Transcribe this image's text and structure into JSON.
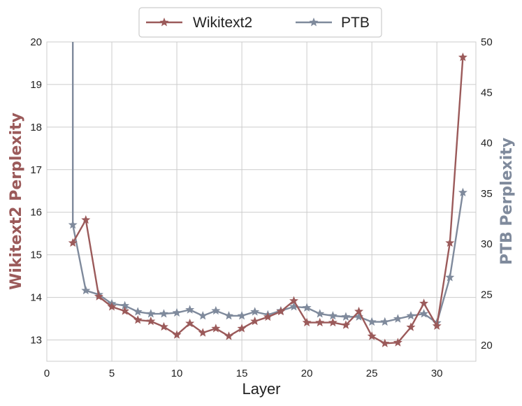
{
  "chart_data": {
    "type": "line",
    "xlabel": "Layer",
    "ylabel_left": "Wikitext2 Perplexity",
    "ylabel_right": "PTB Perplexity",
    "xlim": [
      0,
      33
    ],
    "ylim_left": [
      12.5,
      20
    ],
    "ylim_right": [
      18.4,
      50
    ],
    "x_ticks": [
      0,
      5,
      10,
      15,
      20,
      25,
      30
    ],
    "y_ticks_left": [
      13,
      14,
      15,
      16,
      17,
      18,
      19,
      20
    ],
    "y_ticks_right": [
      20,
      25,
      30,
      35,
      40,
      45,
      50
    ],
    "grid": true,
    "legend_position": "top-center",
    "colors": {
      "wikitext2": "#9b5a5a",
      "ptb": "#7f8a9c"
    },
    "series": [
      {
        "name": "Wikitext2",
        "axis": "left",
        "x": [
          2,
          3,
          4,
          5,
          6,
          7,
          8,
          9,
          10,
          11,
          12,
          13,
          14,
          15,
          16,
          17,
          18,
          19,
          20,
          21,
          22,
          23,
          24,
          25,
          26,
          27,
          28,
          29,
          30,
          31,
          32
        ],
        "values": [
          15.28,
          15.82,
          14.02,
          13.78,
          13.68,
          13.47,
          13.44,
          13.31,
          13.12,
          13.39,
          13.17,
          13.27,
          13.09,
          13.27,
          13.44,
          13.54,
          13.67,
          13.92,
          13.41,
          13.41,
          13.41,
          13.35,
          13.67,
          13.09,
          12.92,
          12.94,
          13.3,
          13.86,
          13.33,
          15.28,
          19.64
        ]
      },
      {
        "name": "PTB",
        "axis": "right",
        "x": [
          2,
          3,
          4,
          5,
          6,
          7,
          8,
          9,
          10,
          11,
          12,
          13,
          14,
          15,
          16,
          17,
          18,
          19,
          20,
          21,
          22,
          23,
          24,
          25,
          26,
          27,
          28,
          29,
          30,
          31,
          32
        ],
        "values": [
          31.9,
          25.4,
          25.0,
          24.1,
          23.9,
          23.3,
          23.1,
          23.1,
          23.2,
          23.5,
          22.9,
          23.4,
          22.9,
          22.9,
          23.3,
          23.0,
          23.4,
          23.8,
          23.7,
          23.1,
          22.9,
          22.8,
          22.8,
          22.3,
          22.3,
          22.6,
          22.9,
          23.1,
          22.2,
          26.7,
          35.1
        ]
      }
    ],
    "ptb_vertical_segment": {
      "x": 2,
      "from": 50,
      "to": 31.9
    }
  }
}
